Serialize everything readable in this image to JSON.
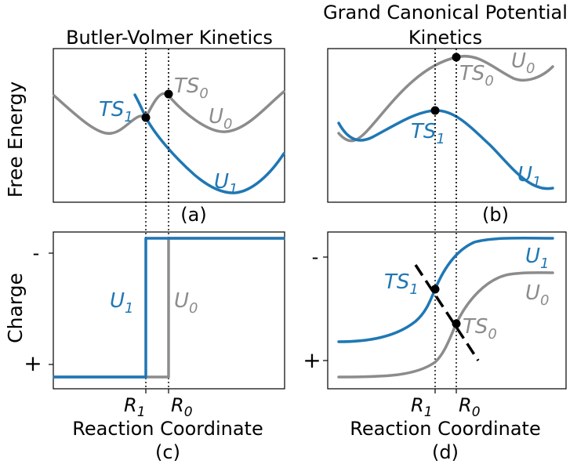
{
  "figure": {
    "panel_a": {
      "title": "Butler-Volmer Kinetics",
      "tag": "(a)",
      "ts1": "TS",
      "ts1_sub": "1",
      "ts0": "TS",
      "ts0_sub": "0",
      "u0": "U",
      "u0_sub": "0",
      "u1": "U",
      "u1_sub": "1"
    },
    "panel_b": {
      "title_line1": "Grand Canonical Potential",
      "title_line2": "Kinetics",
      "tag": "(b)",
      "ts0": "TS",
      "ts0_sub": "0",
      "u0": "U",
      "u0_sub": "0",
      "ts1": "TS",
      "ts1_sub": "1",
      "u1": "U",
      "u1_sub": "1"
    },
    "panel_c": {
      "tag": "(c)",
      "u1": "U",
      "u1_sub": "1",
      "u0": "U",
      "u0_sub": "0",
      "tick_minus": "-",
      "tick_plus": "+",
      "r1": "R",
      "r1_sub": "1",
      "r0": "R",
      "r0_sub": "0",
      "xlabel": "Reaction Coordinate"
    },
    "panel_d": {
      "tag": "(d)",
      "ts1": "TS",
      "ts1_sub": "1",
      "ts0": "TS",
      "ts0_sub": "0",
      "u1": "U",
      "u1_sub": "1",
      "u0": "U",
      "u0_sub": "0",
      "tick_minus": "-",
      "tick_plus": "+",
      "r1": "R",
      "r1_sub": "1",
      "r0": "R",
      "r0_sub": "0",
      "xlabel": "Reaction Coordinate"
    },
    "ylabel_top": "Free Energy",
    "ylabel_bottom": "Charge",
    "colors": {
      "state1": "#1f77b4",
      "state0": "#8c8c8c"
    }
  }
}
